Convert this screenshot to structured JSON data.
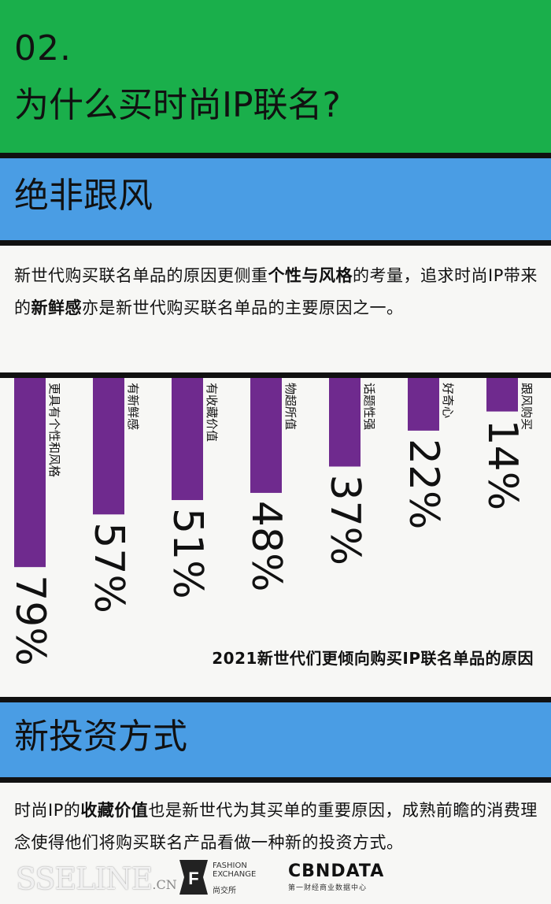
{
  "header": {
    "number": "02.",
    "title": "为什么买时尚IP联名?"
  },
  "section1": {
    "title": "绝非跟风",
    "paragraph": {
      "p1": "新世代购买联名单品的原因更侧重",
      "b1": "个性与风格",
      "p2": "的考量，追求时尚IP带来的",
      "b2": "新鲜感",
      "p3": "亦是新世代购买联名单品的主要原因之一。"
    }
  },
  "chart_data": {
    "type": "bar",
    "title": "2021新世代们更倾向购买IP联名单品的原因",
    "categories": [
      "更具有个性和风格",
      "有新鲜感",
      "有收藏价值",
      "物超所值",
      "话题性强",
      "好奇心",
      "跟风购买"
    ],
    "values": [
      79,
      57,
      51,
      48,
      37,
      22,
      14
    ],
    "value_labels": [
      "79%",
      "57%",
      "51%",
      "48%",
      "37%",
      "22%",
      "14%"
    ],
    "orientation": "vertical-down",
    "bar_color": "#6f2a8e"
  },
  "section2": {
    "title": "新投资方式",
    "paragraph": {
      "p1": "时尚IP的",
      "b1": "收藏价值",
      "p2": "也是新世代为其买单的重要原因，成熟前瞻的消费理念使得他们将购买联名产品看做一种新的投资方式。"
    }
  },
  "footer": {
    "sseline": "SSELINE",
    "sseline_cn": ".CN",
    "fe_line1": "FASHION",
    "fe_line2": "EXCHANGE",
    "fe_cn": "尚交所",
    "cb_name": "CBNDATA",
    "cb_sub": "第一财经商业数据中心"
  },
  "colors": {
    "green": "#1aaf4b",
    "blue": "#4a9de4",
    "purple": "#6f2a8e",
    "rule": "#111111"
  }
}
